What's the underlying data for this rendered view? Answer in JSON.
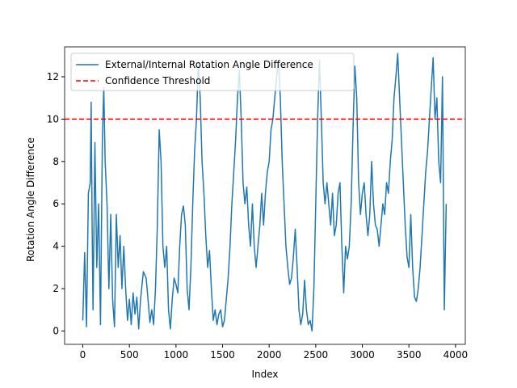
{
  "chart_data": {
    "type": "line",
    "xlabel": "Index",
    "ylabel": "Rotation Angle Difference",
    "x": [
      0,
      20,
      40,
      60,
      80,
      90,
      100,
      110,
      130,
      150,
      170,
      190,
      210,
      225,
      240,
      260,
      280,
      300,
      320,
      340,
      360,
      380,
      400,
      420,
      440,
      460,
      480,
      500,
      520,
      540,
      560,
      580,
      600,
      620,
      650,
      680,
      700,
      720,
      740,
      760,
      780,
      800,
      820,
      840,
      860,
      880,
      900,
      920,
      940,
      960,
      980,
      1000,
      1020,
      1040,
      1060,
      1080,
      1100,
      1120,
      1140,
      1160,
      1180,
      1200,
      1220,
      1240,
      1260,
      1280,
      1300,
      1320,
      1340,
      1360,
      1380,
      1400,
      1420,
      1440,
      1460,
      1480,
      1500,
      1520,
      1540,
      1560,
      1580,
      1600,
      1620,
      1640,
      1660,
      1680,
      1700,
      1720,
      1740,
      1760,
      1780,
      1800,
      1820,
      1840,
      1860,
      1880,
      1900,
      1920,
      1940,
      1960,
      1980,
      2000,
      2020,
      2040,
      2060,
      2080,
      2100,
      2120,
      2140,
      2160,
      2180,
      2200,
      2220,
      2240,
      2260,
      2280,
      2300,
      2320,
      2340,
      2360,
      2380,
      2400,
      2420,
      2440,
      2460,
      2480,
      2500,
      2520,
      2540,
      2560,
      2580,
      2600,
      2620,
      2640,
      2660,
      2680,
      2700,
      2720,
      2740,
      2760,
      2780,
      2800,
      2820,
      2840,
      2860,
      2880,
      2900,
      2920,
      2940,
      2960,
      2980,
      3000,
      3020,
      3040,
      3060,
      3080,
      3100,
      3120,
      3140,
      3160,
      3180,
      3200,
      3220,
      3240,
      3260,
      3280,
      3300,
      3320,
      3340,
      3360,
      3380,
      3400,
      3420,
      3440,
      3460,
      3480,
      3500,
      3520,
      3540,
      3560,
      3580,
      3600,
      3620,
      3640,
      3660,
      3680,
      3700,
      3720,
      3740,
      3760,
      3780,
      3800,
      3820,
      3840,
      3860,
      3880,
      3900
    ],
    "series": [
      {
        "name": "External/Internal Rotation Angle Difference",
        "color": "#1f77b4",
        "values": [
          0.5,
          3.7,
          0.2,
          6.5,
          7,
          10.8,
          5,
          1,
          8.9,
          3,
          6,
          0.3,
          9,
          11.5,
          8,
          6,
          2,
          5.5,
          1.5,
          0.2,
          5.5,
          3,
          4.5,
          2,
          4,
          2,
          0.5,
          1.5,
          0.3,
          1.8,
          0.8,
          1.6,
          0.1,
          1.5,
          2.8,
          2.5,
          1.5,
          0.4,
          1,
          0.3,
          2,
          5,
          9.5,
          8,
          4,
          3,
          4,
          1,
          0.1,
          1.5,
          2.5,
          2.2,
          1.8,
          4,
          5.5,
          5.9,
          5,
          2,
          1,
          3,
          6,
          8.5,
          10,
          12.7,
          11,
          8,
          6.5,
          4.5,
          3,
          3.8,
          2,
          0.5,
          1,
          0.3,
          0.8,
          1,
          0.2,
          0.5,
          1.5,
          2.5,
          4,
          6,
          7.5,
          9,
          11,
          12.3,
          10,
          7,
          6,
          6.8,
          5,
          4,
          6,
          4,
          3,
          4,
          5,
          6.5,
          5,
          6.5,
          7.5,
          8,
          9.5,
          10,
          11,
          12,
          12.8,
          11,
          8,
          6,
          4,
          3,
          2.2,
          2.5,
          3.5,
          4.8,
          3,
          1,
          0.3,
          0.8,
          2.4,
          1,
          0.3,
          0.5,
          0,
          2,
          6,
          10,
          12.8,
          10,
          7,
          6,
          7,
          6,
          5,
          6.5,
          4.5,
          5,
          6.5,
          7,
          4,
          1.8,
          4,
          3.4,
          4,
          6,
          9.5,
          12.5,
          11,
          7,
          5.5,
          6.5,
          7,
          5.5,
          4.5,
          5.5,
          8,
          6,
          5,
          4.8,
          4,
          5,
          6,
          5.5,
          7,
          6.5,
          8,
          9,
          11,
          12,
          13.1,
          11,
          9,
          7,
          5,
          3.5,
          3,
          5.5,
          3,
          1.6,
          1.4,
          2,
          3,
          4.5,
          6,
          7.5,
          8.5,
          10,
          11.5,
          12.9,
          10,
          11,
          8,
          7,
          12,
          1,
          6
        ]
      },
      {
        "name": "Confidence Threshold",
        "color": "#ff0000",
        "dashed": true,
        "hline": 10
      }
    ],
    "xlim": [
      -195,
      4105
    ],
    "ylim": [
      -0.63,
      13.41
    ],
    "xticks": [
      0,
      500,
      1000,
      1500,
      2000,
      2500,
      3000,
      3500,
      4000
    ],
    "yticks": [
      0,
      2,
      4,
      6,
      8,
      10,
      12
    ],
    "legend": "upper left"
  }
}
